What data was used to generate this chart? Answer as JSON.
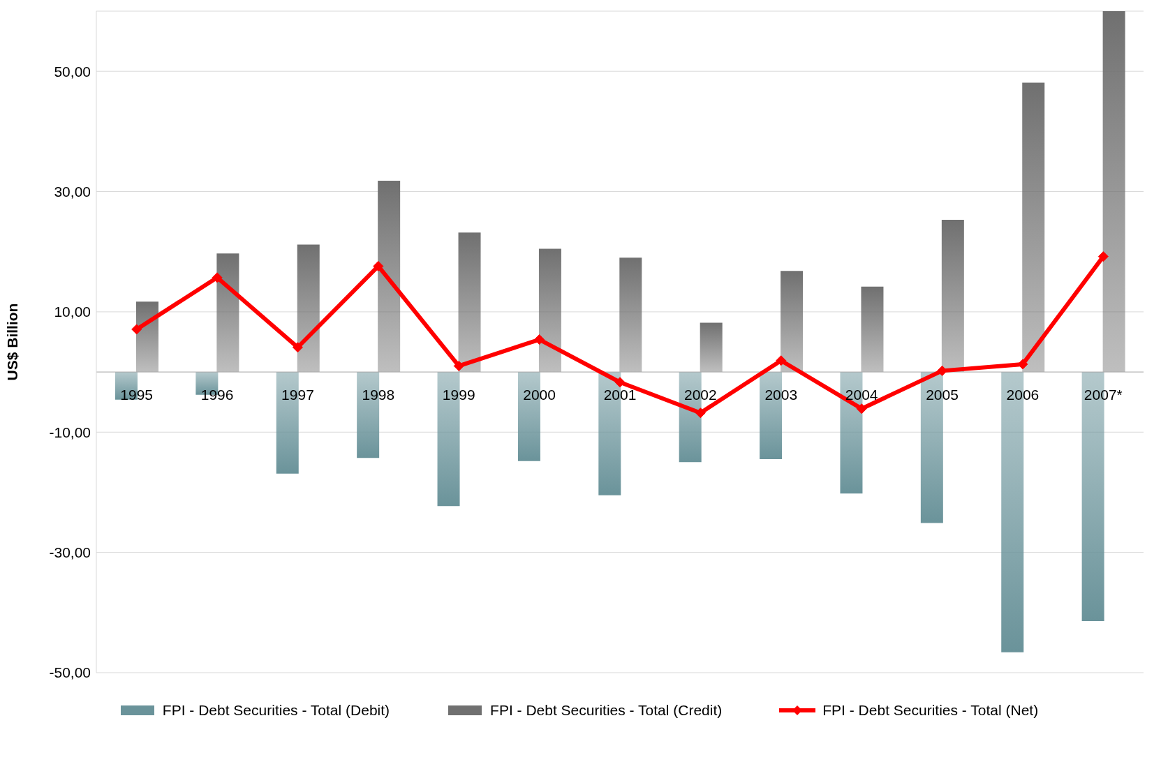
{
  "chart_data": {
    "type": "bar",
    "ylabel": "US$ Billion",
    "categories": [
      "1995",
      "1996",
      "1997",
      "1998",
      "1999",
      "2000",
      "2001",
      "2002",
      "2003",
      "2004",
      "2005",
      "2006",
      "2007*"
    ],
    "series": [
      {
        "name": "FPI - Debt Securities - Total (Debit)",
        "color": "#6a939a",
        "values": [
          -4.6,
          -3.8,
          -16.9,
          -14.3,
          -22.3,
          -14.8,
          -20.5,
          -15.0,
          -14.5,
          -20.2,
          -25.1,
          -46.6,
          -41.4
        ]
      },
      {
        "name": "FPI - Debt Securities - Total (Credit)",
        "color": "#707070",
        "values": [
          11.7,
          19.7,
          21.2,
          31.8,
          23.2,
          20.5,
          19.0,
          8.2,
          16.8,
          14.2,
          25.3,
          48.1,
          60
        ]
      },
      {
        "name": "FPI - Debt Securities - Total (Net)",
        "type": "line",
        "color": "#ff0000",
        "marker": "diamond",
        "values": [
          7.1,
          15.7,
          4.1,
          17.6,
          1.0,
          5.4,
          -1.7,
          -6.8,
          1.9,
          -6.1,
          0.2,
          1.3,
          19.2
        ]
      }
    ],
    "ylim": [
      -50,
      60
    ],
    "yticks": [
      {
        "value": -50,
        "label": "-50,00"
      },
      {
        "value": -30,
        "label": "-30,00"
      },
      {
        "value": -10,
        "label": "-10,00"
      },
      {
        "value": 10,
        "label": "10,00"
      },
      {
        "value": 30,
        "label": "30,00"
      },
      {
        "value": 50,
        "label": "50,00"
      }
    ],
    "grid": "y",
    "legend": "bottom"
  }
}
